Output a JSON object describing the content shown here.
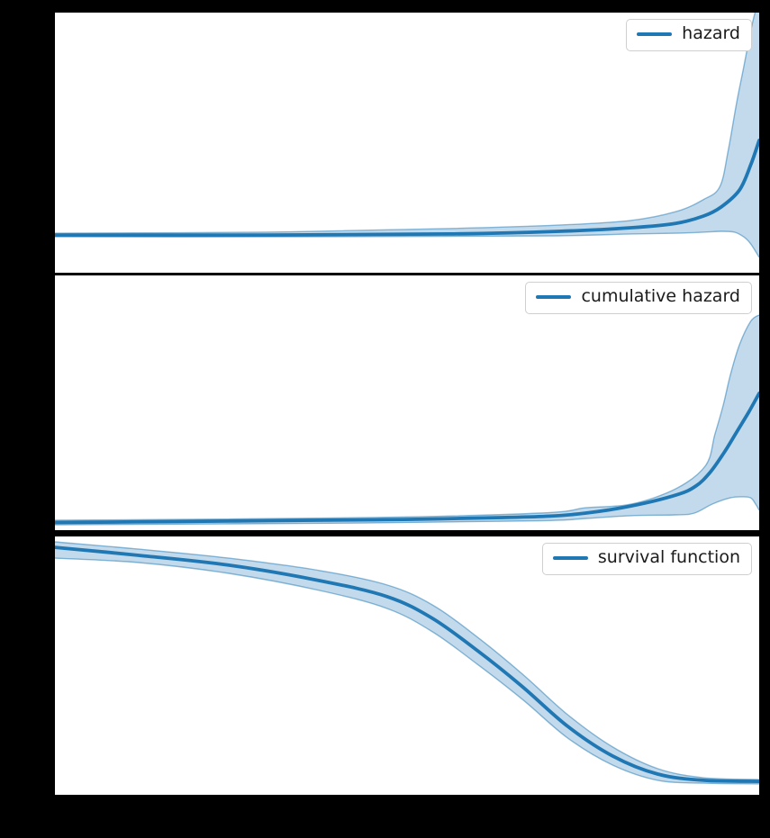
{
  "figure": {
    "background_color": "#000000",
    "axes_background_color": "#ffffff",
    "note": "matplotlib-style figure, 3 stacked subplots; axis tick labels are not visible (rendered black on black background)"
  },
  "colors": {
    "line": "#1f77b4",
    "band_fill": "rgba(31,119,180,0.27)",
    "band_edge": "rgba(31,119,180,0.5)",
    "legend_border": "#cfcfcf",
    "legend_text": "#1b1b1b"
  },
  "chart_data": [
    {
      "type": "line",
      "title": "",
      "legend": "hazard",
      "legend_location": "upper right",
      "x_units": "normalized 0-1 (x tick labels not visible)",
      "y_units": "normalized 0-1 fraction of axes height (y tick labels not visible)",
      "description": "hazard curve: flat low value, exponential rise at right edge with confidence band fanning out",
      "series": [
        {
          "name": "hazard",
          "role": "line",
          "x": [
            0,
            0.3,
            0.56,
            0.715,
            0.818,
            0.882,
            0.921,
            0.946,
            0.972,
            0.988,
            1.0
          ],
          "y": [
            0.145,
            0.145,
            0.149,
            0.159,
            0.173,
            0.19,
            0.218,
            0.253,
            0.318,
            0.415,
            0.509
          ]
        },
        {
          "name": "hazard CI upper",
          "role": "ci_upper",
          "x": [
            0,
            0.3,
            0.56,
            0.715,
            0.818,
            0.882,
            0.92,
            0.944,
            0.956,
            0.968,
            0.978,
            0.988,
            0.996,
            1.0
          ],
          "y": [
            0.152,
            0.156,
            0.17,
            0.183,
            0.201,
            0.235,
            0.28,
            0.33,
            0.47,
            0.654,
            0.79,
            0.93,
            1.02,
            1.05
          ]
        },
        {
          "name": "hazard CI lower",
          "role": "ci_lower",
          "x": [
            0,
            0.3,
            0.56,
            0.715,
            0.818,
            0.882,
            0.921,
            0.946,
            0.965,
            0.978,
            0.988,
            1.0
          ],
          "y": [
            0.138,
            0.138,
            0.14,
            0.142,
            0.149,
            0.152,
            0.156,
            0.159,
            0.156,
            0.138,
            0.111,
            0.059
          ]
        }
      ]
    },
    {
      "type": "line",
      "title": "",
      "legend": "cumulative hazard",
      "legend_location": "upper right",
      "x_units": "normalized 0-1 (x tick labels not visible)",
      "y_units": "normalized 0-1 fraction of axes height (y tick labels not visible)",
      "description": "cumulative hazard: near-flat, accelerating rise toward right edge with widening confidence band",
      "series": [
        {
          "name": "cumulative hazard",
          "role": "line",
          "x": [
            0,
            0.177,
            0.369,
            0.497,
            0.626,
            0.703,
            0.754,
            0.818,
            0.882,
            0.91,
            0.93,
            0.95,
            0.968,
            0.985,
            1.0
          ],
          "y": [
            0.03,
            0.034,
            0.039,
            0.042,
            0.049,
            0.055,
            0.067,
            0.095,
            0.138,
            0.173,
            0.226,
            0.304,
            0.385,
            0.463,
            0.537
          ]
        },
        {
          "name": "cumulative hazard CI upper",
          "role": "ci_upper",
          "x": [
            0,
            0.433,
            0.69,
            0.754,
            0.818,
            0.882,
            0.924,
            0.937,
            0.949,
            0.959,
            0.972,
            0.988,
            1.0
          ],
          "y": [
            0.039,
            0.049,
            0.067,
            0.088,
            0.102,
            0.163,
            0.254,
            0.375,
            0.491,
            0.608,
            0.728,
            0.82,
            0.845
          ]
        },
        {
          "name": "cumulative hazard CI lower",
          "role": "ci_lower",
          "x": [
            0,
            0.433,
            0.69,
            0.754,
            0.818,
            0.882,
            0.908,
            0.933,
            0.959,
            0.976,
            0.988,
            0.995,
            1.0
          ],
          "y": [
            0.021,
            0.028,
            0.037,
            0.046,
            0.057,
            0.06,
            0.067,
            0.102,
            0.127,
            0.131,
            0.127,
            0.102,
            0.078
          ]
        }
      ]
    },
    {
      "type": "line",
      "title": "",
      "legend": "survival function",
      "legend_location": "upper right",
      "x_units": "normalized 0-1 (x tick labels not visible)",
      "y_units": "approx survival probability (1 at left declining to ~0 at right); tick labels not visible",
      "description": "survival function: sigmoid decline from ~1 to ~0 with narrow confidence band",
      "series": [
        {
          "name": "survival function",
          "role": "line",
          "x": [
            0,
            0.119,
            0.247,
            0.376,
            0.472,
            0.536,
            0.6,
            0.664,
            0.728,
            0.792,
            0.856,
            0.921,
            1.0
          ],
          "y": [
            0.958,
            0.927,
            0.889,
            0.829,
            0.767,
            0.683,
            0.558,
            0.418,
            0.265,
            0.15,
            0.08,
            0.056,
            0.052
          ]
        },
        {
          "name": "survival CI upper",
          "role": "ci_upper",
          "x": [
            0,
            0.119,
            0.247,
            0.376,
            0.472,
            0.536,
            0.6,
            0.664,
            0.728,
            0.792,
            0.856,
            0.921,
            1.0
          ],
          "y": [
            0.979,
            0.951,
            0.916,
            0.868,
            0.812,
            0.735,
            0.61,
            0.467,
            0.31,
            0.185,
            0.101,
            0.066,
            0.059
          ]
        },
        {
          "name": "survival CI lower",
          "role": "ci_lower",
          "x": [
            0,
            0.119,
            0.247,
            0.376,
            0.472,
            0.536,
            0.6,
            0.664,
            0.728,
            0.792,
            0.856,
            0.921,
            1.0
          ],
          "y": [
            0.916,
            0.899,
            0.857,
            0.791,
            0.721,
            0.631,
            0.505,
            0.369,
            0.22,
            0.115,
            0.056,
            0.045,
            0.042
          ]
        }
      ]
    }
  ]
}
